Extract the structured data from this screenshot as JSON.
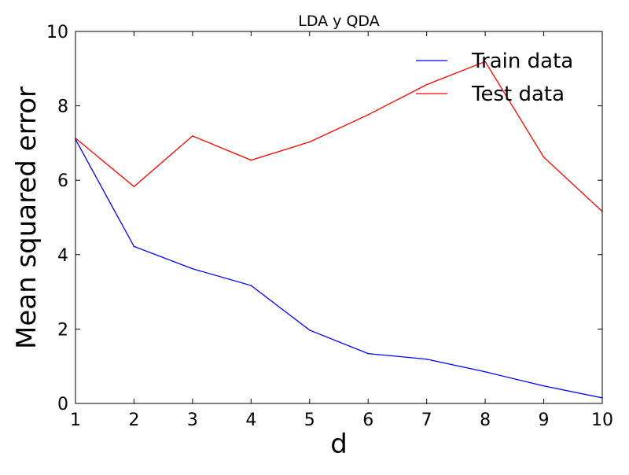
{
  "chart_data": {
    "type": "line",
    "title": "LDA y QDA",
    "xlabel": "d",
    "ylabel": "Mean squared error",
    "xlim": [
      1,
      10
    ],
    "ylim": [
      0,
      10
    ],
    "x_ticks": [
      1,
      2,
      3,
      4,
      5,
      6,
      7,
      8,
      9,
      10
    ],
    "y_ticks": [
      0,
      2,
      4,
      6,
      8,
      10
    ],
    "grid": false,
    "legend_position": "top-right",
    "x": [
      1,
      2,
      3,
      4,
      5,
      6,
      7,
      8,
      9,
      10
    ],
    "series": [
      {
        "name": "Train data",
        "color": "#0000ff",
        "values": [
          7.1,
          4.22,
          3.62,
          3.17,
          1.97,
          1.34,
          1.19,
          0.85,
          0.47,
          0.15
        ]
      },
      {
        "name": "Test data",
        "color": "#ff0000",
        "values": [
          7.13,
          5.83,
          7.19,
          6.54,
          7.03,
          7.76,
          8.57,
          9.19,
          6.62,
          5.16
        ]
      }
    ]
  }
}
